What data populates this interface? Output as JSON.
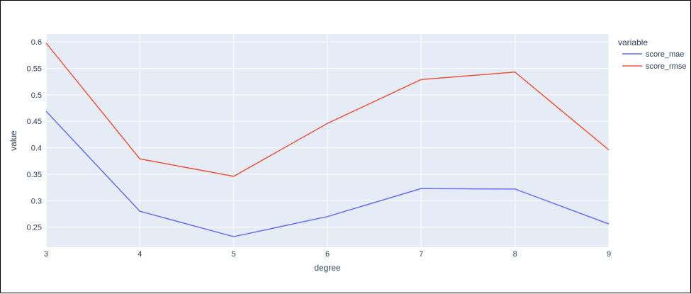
{
  "chart_data": {
    "type": "line",
    "xlabel": "degree",
    "ylabel": "value",
    "x": [
      3,
      4,
      5,
      6,
      7,
      8,
      9
    ],
    "xlim": [
      3,
      9
    ],
    "ylim": [
      0.212,
      0.615
    ],
    "xticks": [
      "3",
      "4",
      "5",
      "6",
      "7",
      "8",
      "9"
    ],
    "yticks": [
      0.25,
      0.3,
      0.35,
      0.4,
      0.45,
      0.5,
      0.55,
      0.6
    ],
    "ytick_labels": [
      "0.25",
      "0.3",
      "0.35",
      "0.4",
      "0.45",
      "0.5",
      "0.55",
      "0.6"
    ],
    "grid": true,
    "legend": {
      "title": "variable",
      "placement": "top-right"
    },
    "series": [
      {
        "name": "score_mae",
        "color": "#636efa",
        "values": [
          0.469,
          0.28,
          0.232,
          0.27,
          0.323,
          0.322,
          0.256
        ]
      },
      {
        "name": "score_rmse",
        "color": "#ef553b",
        "values": [
          0.598,
          0.379,
          0.346,
          0.446,
          0.529,
          0.543,
          0.396
        ]
      }
    ],
    "plot_bg": "#e5ecf6",
    "grid_color": "#ffffff"
  }
}
